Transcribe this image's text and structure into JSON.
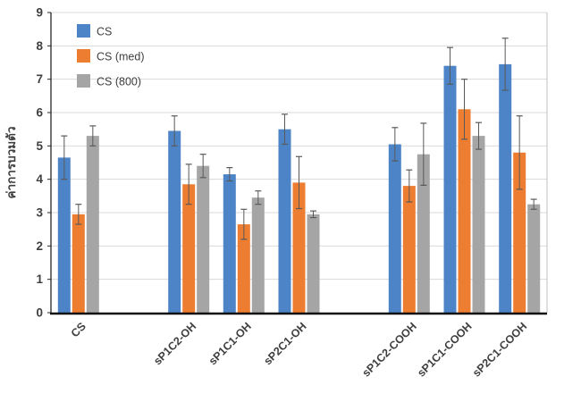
{
  "chart_data": {
    "type": "bar",
    "title": "",
    "xlabel": "",
    "ylabel": "ค่าการบวมตัว",
    "ylim": [
      0,
      9
    ],
    "yticks": [
      0,
      1,
      2,
      3,
      4,
      5,
      6,
      7,
      8,
      9
    ],
    "grid": true,
    "legend_position": "top-left-inside",
    "categories": [
      "CS",
      "sP1C2-OH",
      "sP1C1-OH",
      "sP2C1-OH",
      "sP1C2-COOH",
      "sP1C1-COOH",
      "sP2C1-COOH"
    ],
    "category_slots": [
      0,
      2,
      3,
      4,
      6,
      7,
      8
    ],
    "total_slots": 9,
    "series": [
      {
        "name": "CS",
        "color": "#4C84C7",
        "values": [
          4.65,
          5.45,
          4.15,
          5.5,
          5.05,
          7.4,
          7.45
        ],
        "errors": [
          0.65,
          0.45,
          0.2,
          0.45,
          0.5,
          0.55,
          0.78
        ]
      },
      {
        "name": "CS (med)",
        "color": "#ED7D31",
        "values": [
          2.95,
          3.85,
          2.65,
          3.9,
          3.8,
          6.1,
          4.8
        ],
        "errors": [
          0.3,
          0.6,
          0.45,
          0.78,
          0.48,
          0.9,
          1.1
        ]
      },
      {
        "name": "CS (800)",
        "color": "#A5A5A5",
        "values": [
          5.3,
          4.4,
          3.45,
          2.95,
          4.75,
          5.3,
          3.25
        ],
        "errors": [
          0.3,
          0.35,
          0.2,
          0.1,
          0.93,
          0.4,
          0.15
        ]
      }
    ],
    "colors": {
      "error_bar": "#595959",
      "gridline": "#D9D9D9",
      "axis": "#262626",
      "plot_border": "#BFBFBF",
      "text": "#3F3F3F"
    }
  }
}
